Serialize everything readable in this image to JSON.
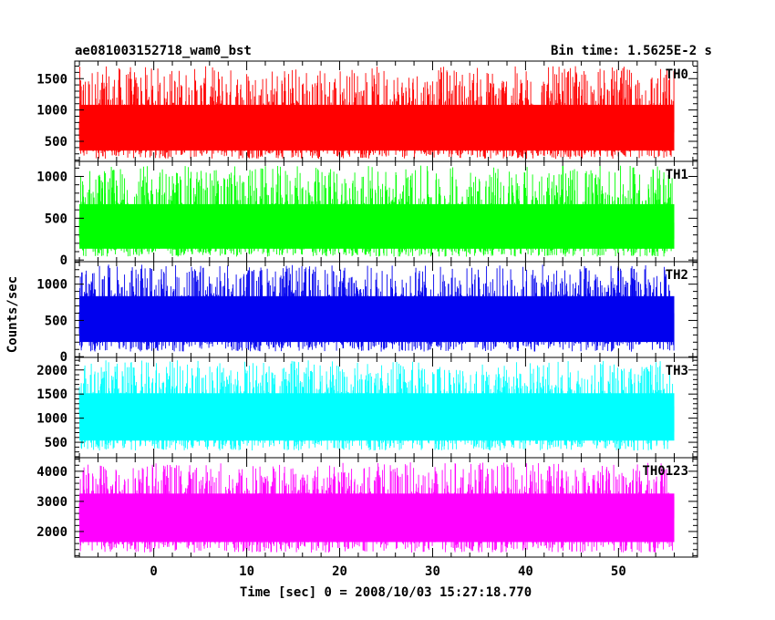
{
  "chart_data": {
    "type": "line",
    "title_left": "ae081003152718_wam0_bst",
    "title_right": "Bin time: 1.5625E-2 s",
    "xlabel": "Time [sec] 0 = 2008/10/03 15:27:18.770",
    "ylabel": "Counts/sec",
    "xlim": [
      -8.5,
      58.5
    ],
    "x_range_data": [
      -8,
      56
    ],
    "xticks": [
      0,
      10,
      20,
      30,
      40,
      50
    ],
    "grid": false,
    "panels": [
      {
        "name": "TH0",
        "color": "#ff0000",
        "ylim": [
          180,
          1780
        ],
        "yticks": [
          500,
          1000,
          1500
        ],
        "low": 220,
        "mid": 750,
        "high": 1700
      },
      {
        "name": "TH1",
        "color": "#00ff00",
        "ylim": [
          -20,
          1180
        ],
        "yticks": [
          0,
          500,
          1000
        ],
        "low": 40,
        "mid": 420,
        "high": 1130
      },
      {
        "name": "TH2",
        "color": "#0000ee",
        "ylim": [
          -10,
          1310
        ],
        "yticks": [
          0,
          500,
          1000
        ],
        "low": 70,
        "mid": 600,
        "high": 1270
      },
      {
        "name": "TH3",
        "color": "#00ffff",
        "ylim": [
          180,
          2260
        ],
        "yticks": [
          500,
          1000,
          1500,
          2000
        ],
        "low": 330,
        "mid": 1150,
        "high": 2200
      },
      {
        "name": "TH0123",
        "color": "#ff00ff",
        "ylim": [
          1150,
          4450
        ],
        "yticks": [
          2000,
          3000,
          4000
        ],
        "low": 1300,
        "mid": 2700,
        "high": 4300
      }
    ]
  }
}
